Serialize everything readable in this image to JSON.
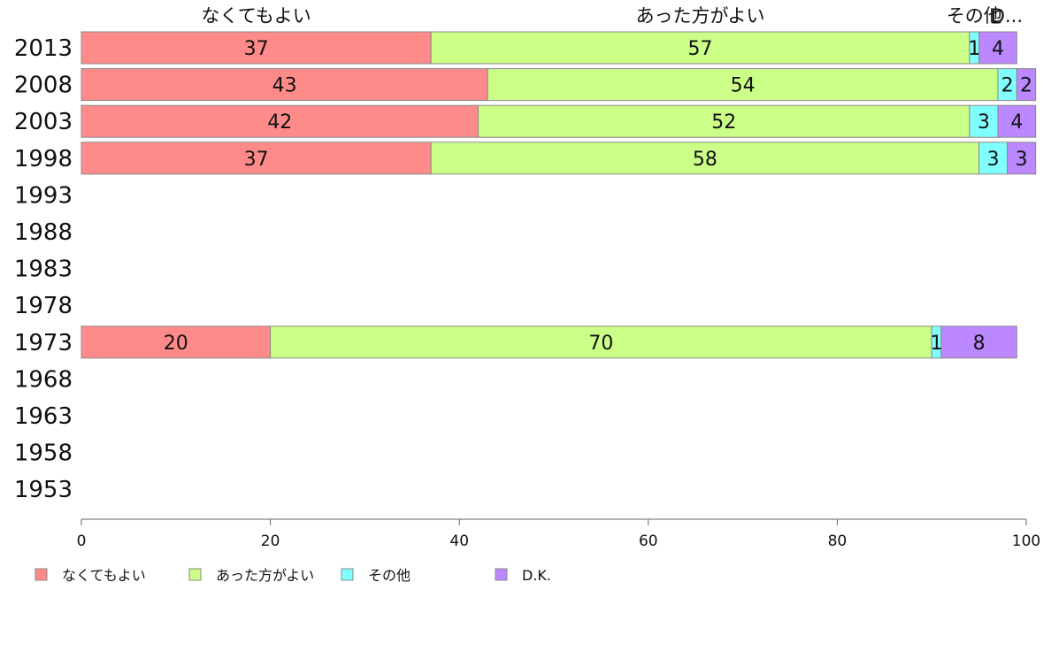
{
  "chart_data": {
    "type": "bar",
    "orientation": "horizontal",
    "stacked": true,
    "categories": [
      "2013",
      "2008",
      "2003",
      "1998",
      "1993",
      "1988",
      "1983",
      "1978",
      "1973",
      "1968",
      "1963",
      "1958",
      "1953"
    ],
    "series": [
      {
        "name": "なくてもよい",
        "color": "#ff8a8a",
        "values": [
          37,
          43,
          42,
          37,
          null,
          null,
          null,
          null,
          20,
          null,
          null,
          null,
          null
        ]
      },
      {
        "name": "あった方がよい",
        "color": "#ccff88",
        "values": [
          57,
          54,
          52,
          58,
          null,
          null,
          null,
          null,
          70,
          null,
          null,
          null,
          null
        ]
      },
      {
        "name": "その他",
        "color": "#80ffff",
        "values": [
          1,
          2,
          3,
          3,
          null,
          null,
          null,
          null,
          1,
          null,
          null,
          null,
          null
        ]
      },
      {
        "name": "D.K.",
        "color": "#bb88ff",
        "values": [
          4,
          2,
          4,
          3,
          null,
          null,
          null,
          null,
          8,
          null,
          null,
          null,
          null
        ]
      }
    ],
    "column_headers": [
      "なくてもよい",
      "あった方がよい",
      "その他",
      "D..."
    ],
    "xlim": [
      0,
      100
    ],
    "x_ticks": [
      0,
      20,
      40,
      60,
      80,
      100
    ],
    "grid": false,
    "legend_position": "bottom"
  }
}
